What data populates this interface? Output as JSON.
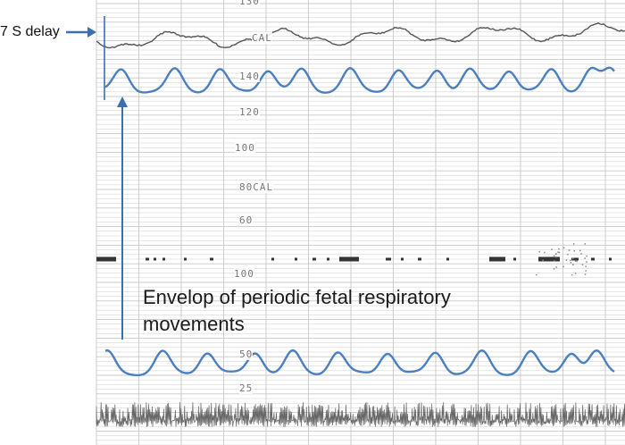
{
  "annotations": {
    "delay": "7 S delay",
    "envelope": "Envelop of periodic fetal respiratory movements"
  },
  "scale_labels": {
    "top": "130",
    "cal_upper": "CAL",
    "l140": "140",
    "l120": "120",
    "l100": "100",
    "cal_lower": "80CAL",
    "l60": "60",
    "l100b": "100",
    "l50": "50",
    "l25": "25"
  },
  "colors": {
    "envelope": "#4a7fc1",
    "trace": "#555555",
    "grid": "#c8c8c8",
    "annotation_arrow": "#3b6fb5"
  }
}
